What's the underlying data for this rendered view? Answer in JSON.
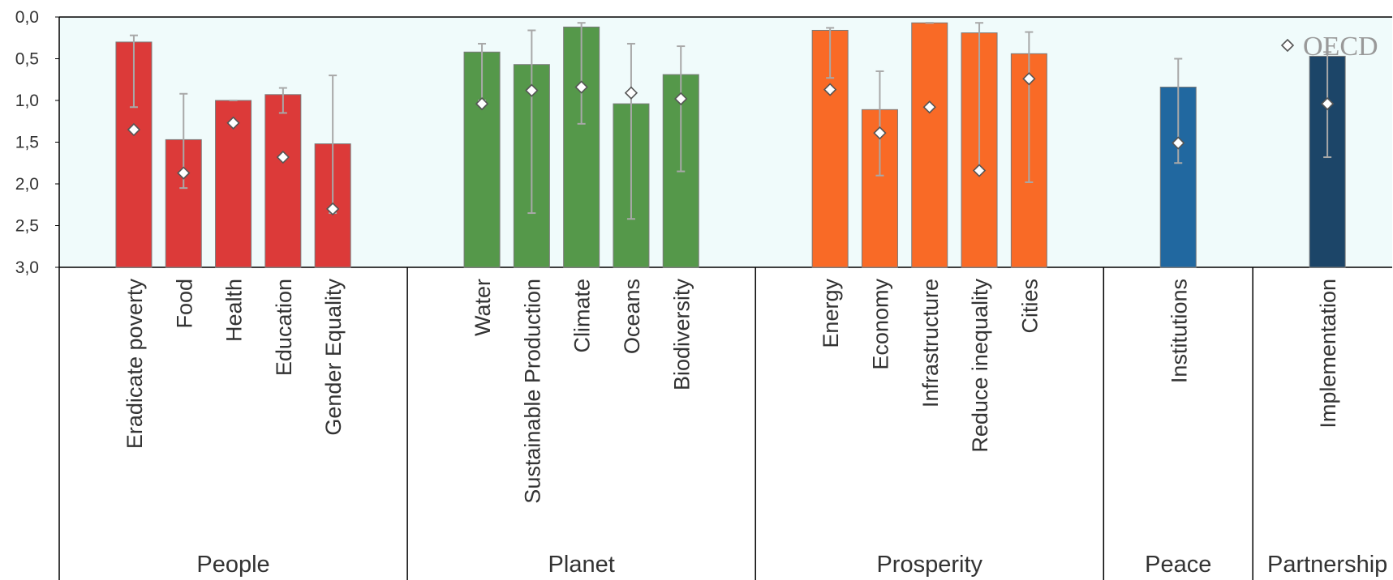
{
  "chart_data": {
    "type": "bar",
    "y_inverted": true,
    "ylim": [
      0,
      3
    ],
    "y_ticks": [
      "0,0",
      "0,5",
      "1,0",
      "1,5",
      "2,0",
      "2,5",
      "3,0"
    ],
    "legend": {
      "position": "top-right",
      "entries": [
        {
          "marker": "diamond",
          "label": "OECD"
        }
      ]
    },
    "colors": {
      "people": "#dc3a39",
      "planet": "#55984a",
      "prosperity": "#f96a26",
      "peace": "#2168a0",
      "partnership": "#1c4568",
      "plot_bg": "#f0fbfb"
    },
    "groups": [
      {
        "name": "People",
        "color": "#dc3a39",
        "categories": [
          {
            "label": "Eradicate poverty",
            "value": 0.3,
            "oecd": 1.35,
            "range": [
              0.22,
              1.08
            ]
          },
          {
            "label": "Food",
            "value": 1.47,
            "oecd": 1.87,
            "range": [
              0.92,
              2.05
            ]
          },
          {
            "label": "Health",
            "value": 1.0,
            "oecd": 1.27,
            "range": [
              1.0,
              1.0
            ]
          },
          {
            "label": "Education",
            "value": 0.93,
            "oecd": 1.68,
            "range": [
              0.85,
              1.15
            ]
          },
          {
            "label": "Gender Equality",
            "value": 1.52,
            "oecd": 2.3,
            "range": [
              0.7,
              2.35
            ]
          }
        ]
      },
      {
        "name": "Planet",
        "color": "#55984a",
        "categories": [
          {
            "label": "Water",
            "value": 0.42,
            "oecd": 1.04,
            "range": [
              0.32,
              1.0
            ]
          },
          {
            "label": "Sustainable Production",
            "value": 0.57,
            "oecd": 0.88,
            "range": [
              0.16,
              2.35
            ]
          },
          {
            "label": "Climate",
            "value": 0.12,
            "oecd": 0.84,
            "range": [
              0.07,
              1.28
            ]
          },
          {
            "label": "Oceans",
            "value": 1.04,
            "oecd": 0.91,
            "range": [
              0.32,
              2.42
            ]
          },
          {
            "label": "Biodiversity",
            "value": 0.69,
            "oecd": 0.98,
            "range": [
              0.35,
              1.85
            ]
          }
        ]
      },
      {
        "name": "Prosperity",
        "color": "#f96a26",
        "categories": [
          {
            "label": "Energy",
            "value": 0.16,
            "oecd": 0.87,
            "range": [
              0.13,
              0.73
            ]
          },
          {
            "label": "Economy",
            "value": 1.11,
            "oecd": 1.39,
            "range": [
              0.65,
              1.9
            ]
          },
          {
            "label": "Infrastructure",
            "value": 0.07,
            "oecd": 1.08,
            "range": [
              0.07,
              0.07
            ]
          },
          {
            "label": "Reduce inequality",
            "value": 0.19,
            "oecd": 1.84,
            "range": [
              0.07,
              1.84
            ]
          },
          {
            "label": "Cities",
            "value": 0.44,
            "oecd": 0.74,
            "range": [
              0.18,
              1.98
            ]
          }
        ]
      },
      {
        "name": "Peace",
        "color": "#2168a0",
        "categories": [
          {
            "label": "Institutions",
            "value": 0.84,
            "oecd": 1.51,
            "range": [
              0.5,
              1.75
            ]
          }
        ]
      },
      {
        "name": "Partnership",
        "color": "#1c4568",
        "categories": [
          {
            "label": "Implementation",
            "value": 0.47,
            "oecd": 1.04,
            "range": [
              0.42,
              1.68
            ]
          }
        ]
      }
    ]
  }
}
